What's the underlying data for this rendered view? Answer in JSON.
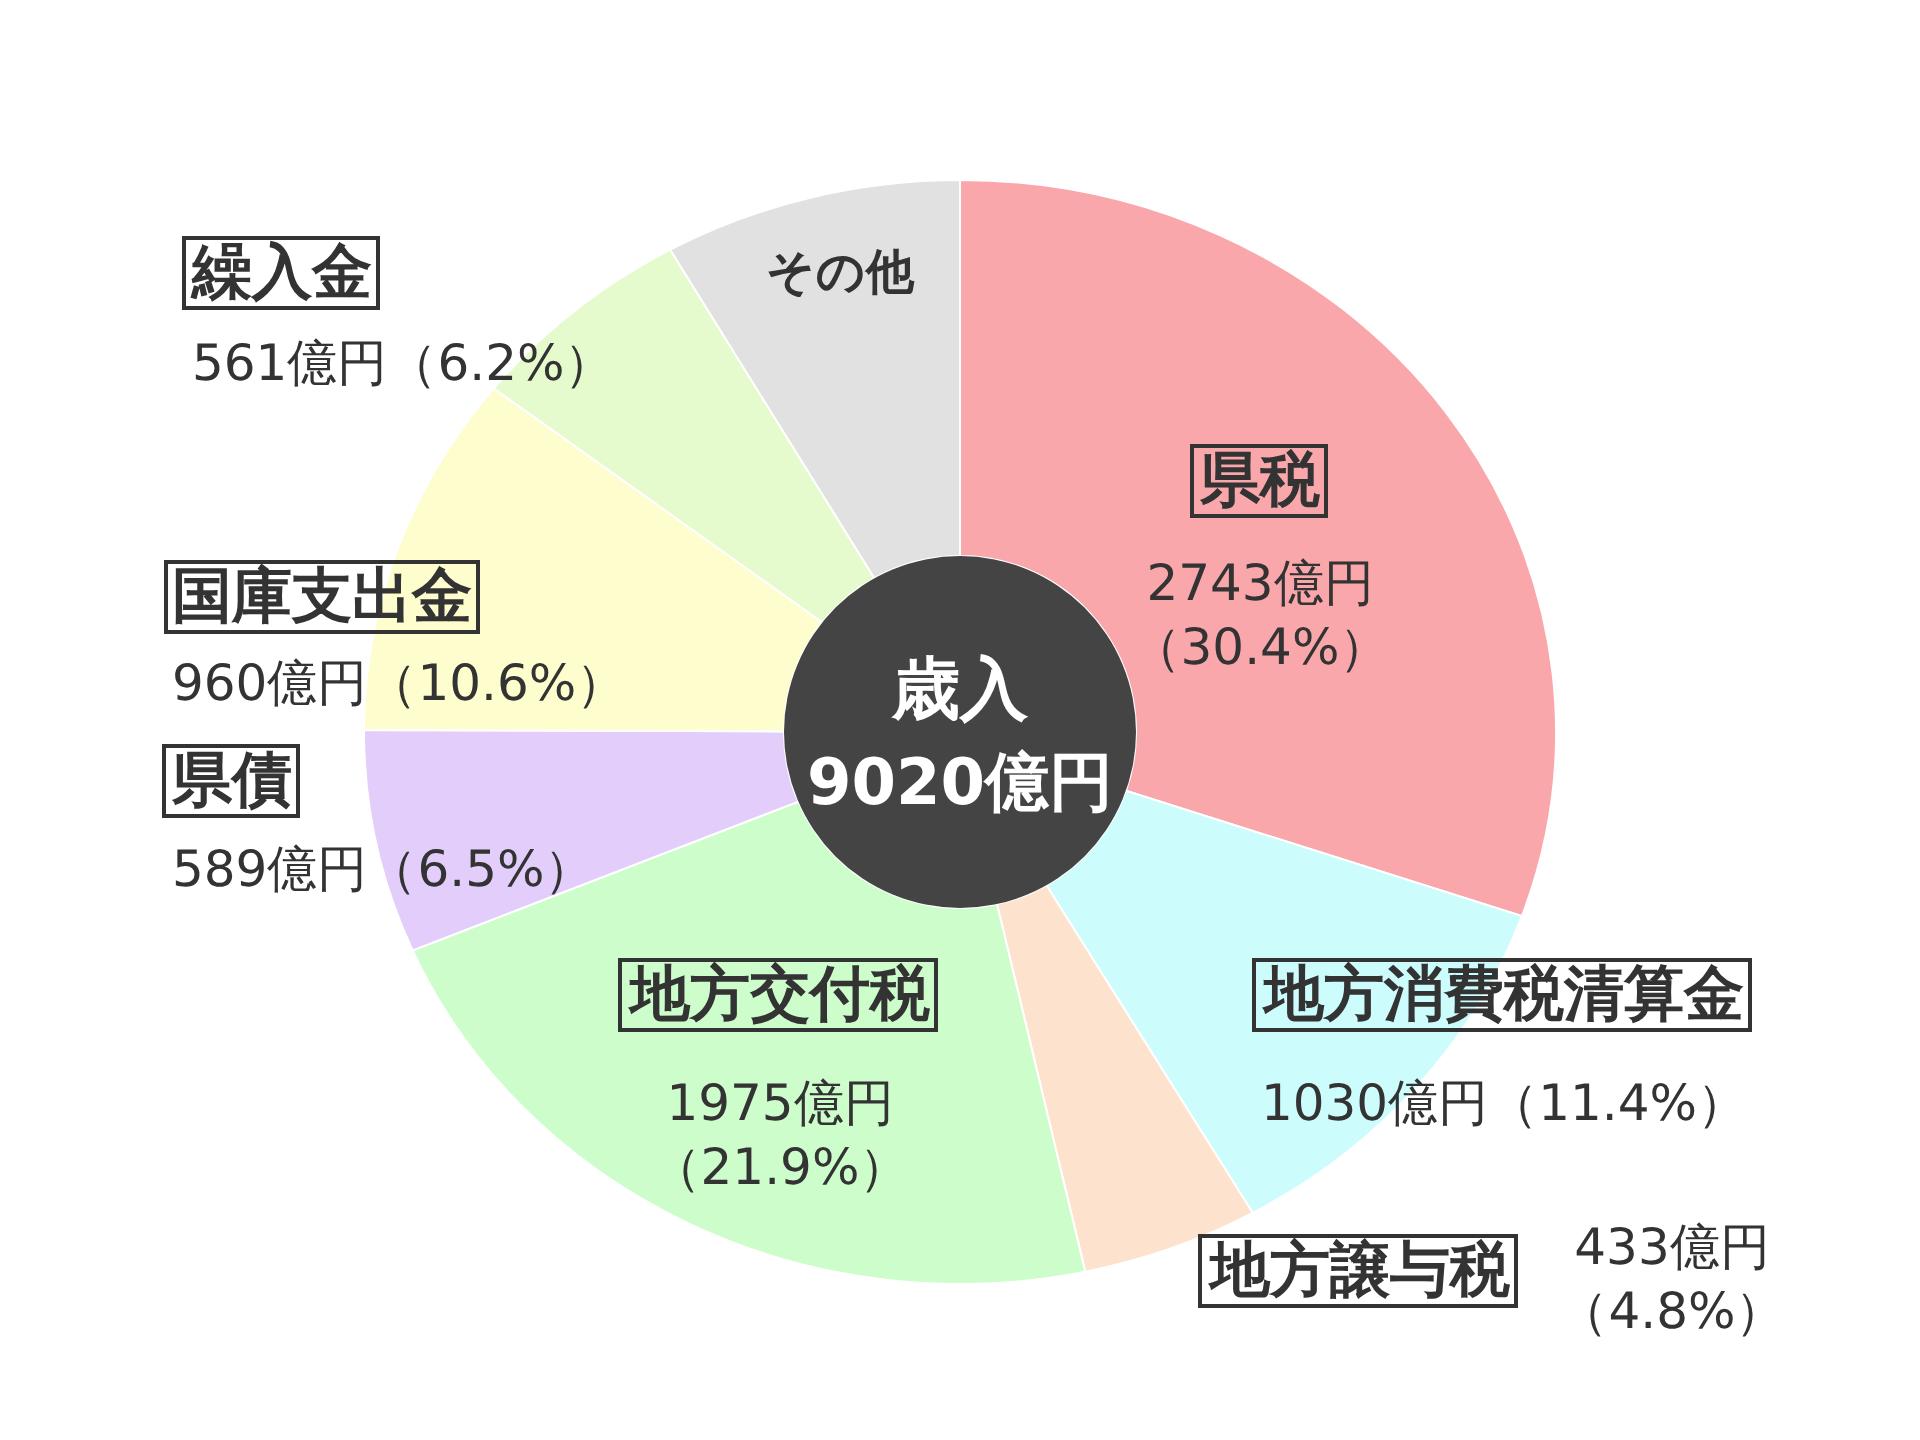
{
  "chart_data": {
    "type": "donut",
    "categories": [
      "県税",
      "地方消費税清算金",
      "地方譲与税",
      "地方交付税",
      "県債",
      "国庫支出金",
      "繰入金",
      "その他"
    ],
    "values": [
      2743,
      1030,
      433,
      1975,
      589,
      960,
      561,
      729
    ],
    "colors": [
      "#f9a7aa",
      "#cdfcfd",
      "#fde3cd",
      "#cdfdcb",
      "#e2cdfb",
      "#fdfdcd",
      "#e6fbcd",
      "#e1e1e1"
    ],
    "value_labels": [
      "2743億円（30.4%）",
      "1030億円（11.4%）",
      "433億円（4.8%）",
      "1975億円（21.9%）",
      "589億円（6.5%）",
      "960億円（10.6%）",
      "561億円（6.2%）",
      null
    ],
    "annotations": [
      "歳入",
      "9020億円"
    ]
  }
}
